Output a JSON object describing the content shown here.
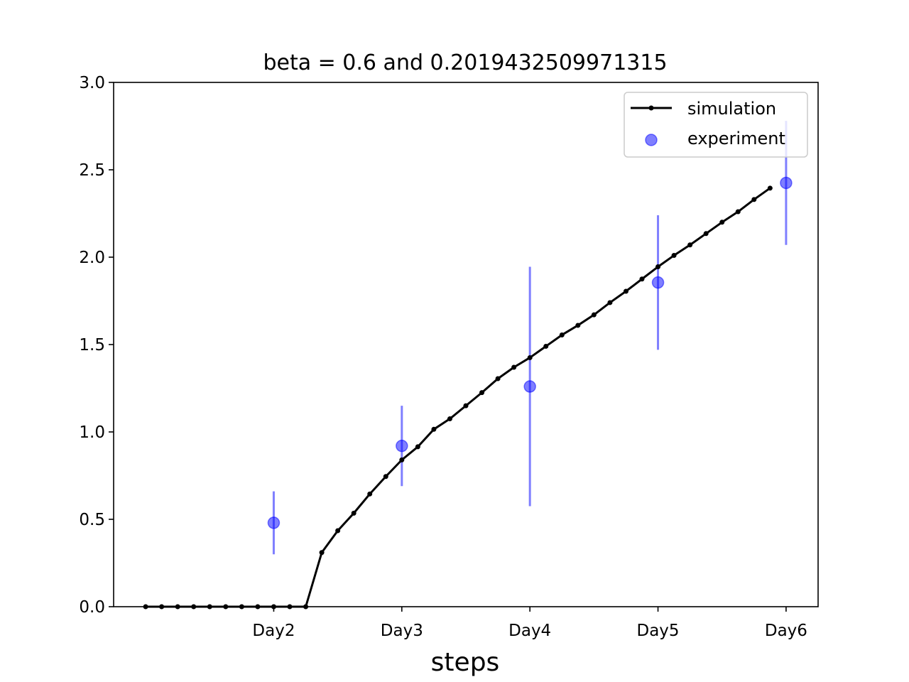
{
  "chart_data": {
    "type": "line",
    "title": "beta = 0.6 and 0.2019432509971315",
    "xlabel": "steps",
    "ylabel": "",
    "xlim": [
      0.75,
      6.25
    ],
    "ylim": [
      0,
      3.0
    ],
    "x_ticks": [
      {
        "value": 2,
        "label": "Day2"
      },
      {
        "value": 3,
        "label": "Day3"
      },
      {
        "value": 4,
        "label": "Day4"
      },
      {
        "value": 5,
        "label": "Day5"
      },
      {
        "value": 6,
        "label": "Day6"
      }
    ],
    "y_ticks": [
      {
        "value": 0.0,
        "label": "0.0"
      },
      {
        "value": 0.5,
        "label": "0.5"
      },
      {
        "value": 1.0,
        "label": "1.0"
      },
      {
        "value": 1.5,
        "label": "1.5"
      },
      {
        "value": 2.0,
        "label": "2.0"
      },
      {
        "value": 2.5,
        "label": "2.5"
      },
      {
        "value": 3.0,
        "label": "3.0"
      }
    ],
    "grid": false,
    "legend_position": "top-right",
    "series": [
      {
        "name": "simulation",
        "kind": "line-with-markers",
        "color": "#000000",
        "x": [
          1.0,
          1.125,
          1.25,
          1.375,
          1.5,
          1.625,
          1.75,
          1.875,
          2.0,
          2.125,
          2.25,
          2.375,
          2.5,
          2.625,
          2.75,
          2.875,
          3.0,
          3.125,
          3.25,
          3.375,
          3.5,
          3.625,
          3.75,
          3.875,
          4.0,
          4.125,
          4.25,
          4.375,
          4.5,
          4.625,
          4.75,
          4.875,
          5.0,
          5.125,
          5.25,
          5.375,
          5.5,
          5.625,
          5.75,
          5.875
        ],
        "y": [
          0.0,
          0.0,
          0.0,
          0.0,
          0.0,
          0.0,
          0.0,
          0.0,
          0.0,
          0.0,
          0.0,
          0.31,
          0.435,
          0.535,
          0.645,
          0.745,
          0.84,
          0.915,
          1.015,
          1.075,
          1.15,
          1.225,
          1.305,
          1.37,
          1.425,
          1.49,
          1.555,
          1.61,
          1.67,
          1.74,
          1.805,
          1.875,
          1.945,
          2.01,
          2.07,
          2.135,
          2.2,
          2.26,
          2.33,
          2.395
        ]
      },
      {
        "name": "experiment",
        "kind": "scatter-with-errorbars",
        "color": "#0000ff",
        "x": [
          2,
          3,
          4,
          5,
          6
        ],
        "y": [
          0.48,
          0.92,
          1.26,
          1.855,
          2.425
        ],
        "error": [
          0.18,
          0.23,
          0.685,
          0.385,
          0.355
        ]
      }
    ]
  }
}
